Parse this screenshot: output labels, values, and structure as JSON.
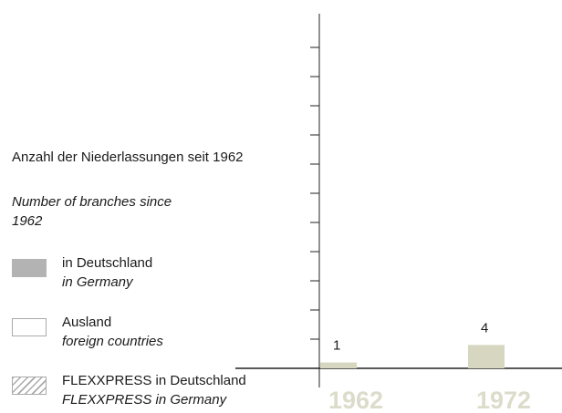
{
  "chart_data": {
    "type": "bar",
    "title": "Anzahl der Niederlassungen seit 1962",
    "subtitle": "Number of branches since 1962",
    "categories": [
      "1962",
      "1972"
    ],
    "values": [
      1,
      4
    ],
    "color": "#d6d6c1",
    "category_color": "#dcdccb",
    "ylim": [
      0,
      60
    ],
    "yticks": [
      5,
      10,
      15,
      20,
      25,
      30,
      35,
      40,
      45,
      50,
      55
    ],
    "legend": [
      {
        "label": "in Deutschland",
        "sublabel": "in Germany",
        "color": "#b3b3b3"
      },
      {
        "label": "Ausland",
        "sublabel": "foreign countries",
        "color": "#ffffff"
      },
      {
        "label": "FLEXXPRESS in Deutschland",
        "sublabel": "FLEXXPRESS in Germany",
        "pattern": "hatch"
      }
    ]
  }
}
